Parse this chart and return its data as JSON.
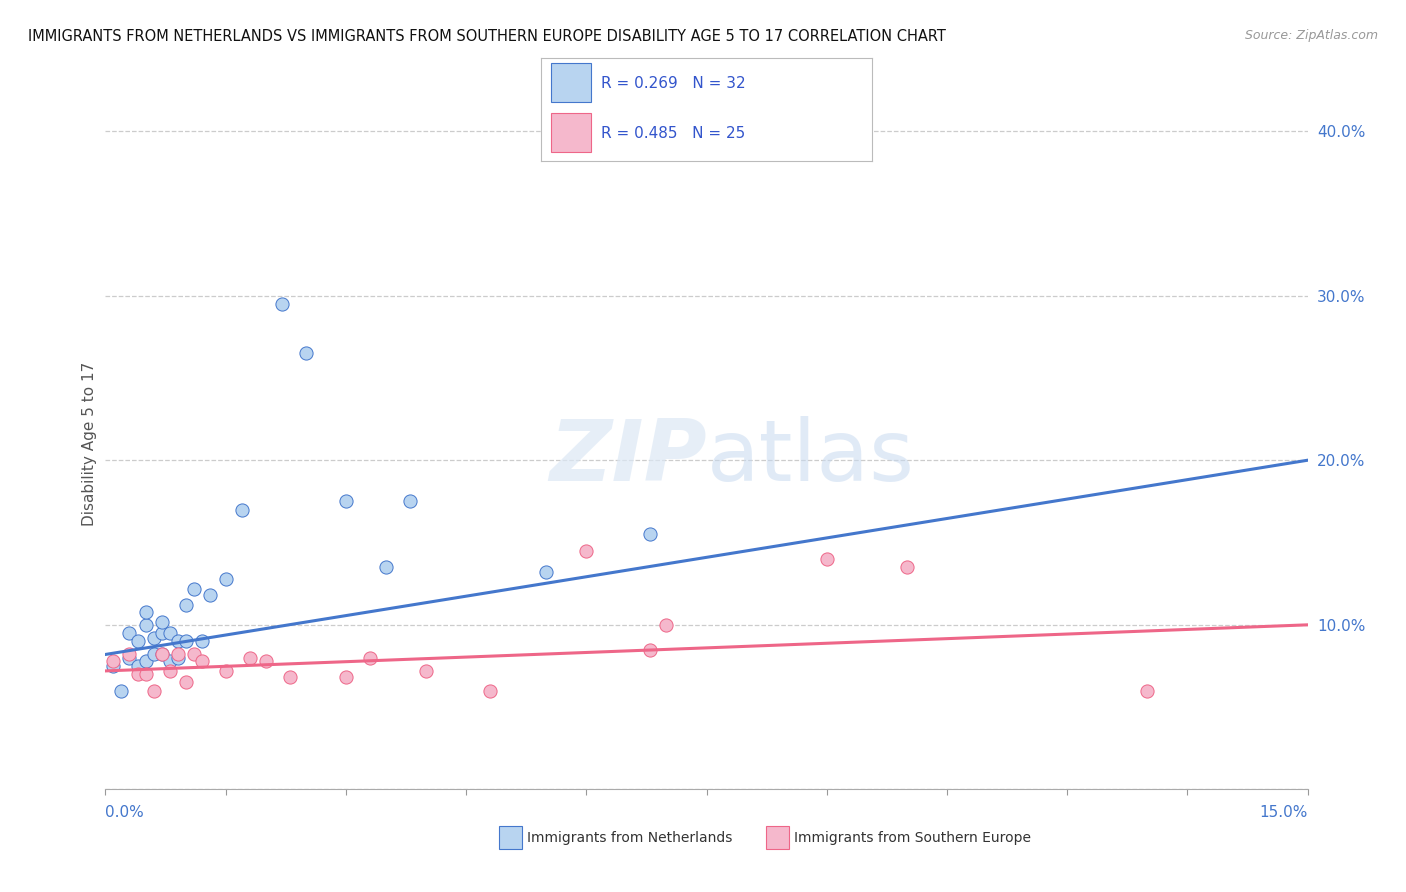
{
  "title": "IMMIGRANTS FROM NETHERLANDS VS IMMIGRANTS FROM SOUTHERN EUROPE DISABILITY AGE 5 TO 17 CORRELATION CHART",
  "source": "Source: ZipAtlas.com",
  "ylabel": "Disability Age 5 to 17",
  "xmin": 0.0,
  "xmax": 0.15,
  "ymin": 0.0,
  "ymax": 0.42,
  "yticks": [
    0.0,
    0.1,
    0.2,
    0.3,
    0.4
  ],
  "ytick_labels": [
    "",
    "10.0%",
    "20.0%",
    "30.0%",
    "40.0%"
  ],
  "legend_r1": "R = 0.269",
  "legend_n1": "N = 32",
  "legend_r2": "R = 0.485",
  "legend_n2": "N = 25",
  "color_netherlands": "#b8d4f0",
  "color_southern": "#f5b8cc",
  "color_netherlands_line": "#4477cc",
  "color_southern_line": "#ee6688",
  "color_title": "#111111",
  "color_source": "#999999",
  "color_legend_text": "#3355cc",
  "nl_line_x0": 0.0,
  "nl_line_y0": 0.082,
  "nl_line_x1": 0.15,
  "nl_line_y1": 0.2,
  "se_line_x0": 0.0,
  "se_line_y0": 0.072,
  "se_line_x1": 0.15,
  "se_line_y1": 0.1,
  "netherlands_x": [
    0.001,
    0.002,
    0.003,
    0.003,
    0.004,
    0.004,
    0.005,
    0.005,
    0.005,
    0.006,
    0.006,
    0.007,
    0.007,
    0.007,
    0.008,
    0.008,
    0.009,
    0.009,
    0.01,
    0.01,
    0.011,
    0.012,
    0.013,
    0.015,
    0.017,
    0.022,
    0.025,
    0.03,
    0.035,
    0.038,
    0.055,
    0.068
  ],
  "netherlands_y": [
    0.075,
    0.06,
    0.08,
    0.095,
    0.075,
    0.09,
    0.1,
    0.108,
    0.078,
    0.082,
    0.092,
    0.095,
    0.082,
    0.102,
    0.078,
    0.095,
    0.08,
    0.09,
    0.09,
    0.112,
    0.122,
    0.09,
    0.118,
    0.128,
    0.17,
    0.295,
    0.265,
    0.175,
    0.135,
    0.175,
    0.132,
    0.155
  ],
  "southern_x": [
    0.001,
    0.003,
    0.004,
    0.005,
    0.006,
    0.007,
    0.008,
    0.009,
    0.01,
    0.011,
    0.012,
    0.015,
    0.018,
    0.02,
    0.023,
    0.03,
    0.033,
    0.04,
    0.048,
    0.06,
    0.068,
    0.07,
    0.09,
    0.1,
    0.13
  ],
  "southern_y": [
    0.078,
    0.082,
    0.07,
    0.07,
    0.06,
    0.082,
    0.072,
    0.082,
    0.065,
    0.082,
    0.078,
    0.072,
    0.08,
    0.078,
    0.068,
    0.068,
    0.08,
    0.072,
    0.06,
    0.145,
    0.085,
    0.1,
    0.14,
    0.135,
    0.06
  ],
  "gridline_color": "#cccccc",
  "background_color": "#ffffff"
}
